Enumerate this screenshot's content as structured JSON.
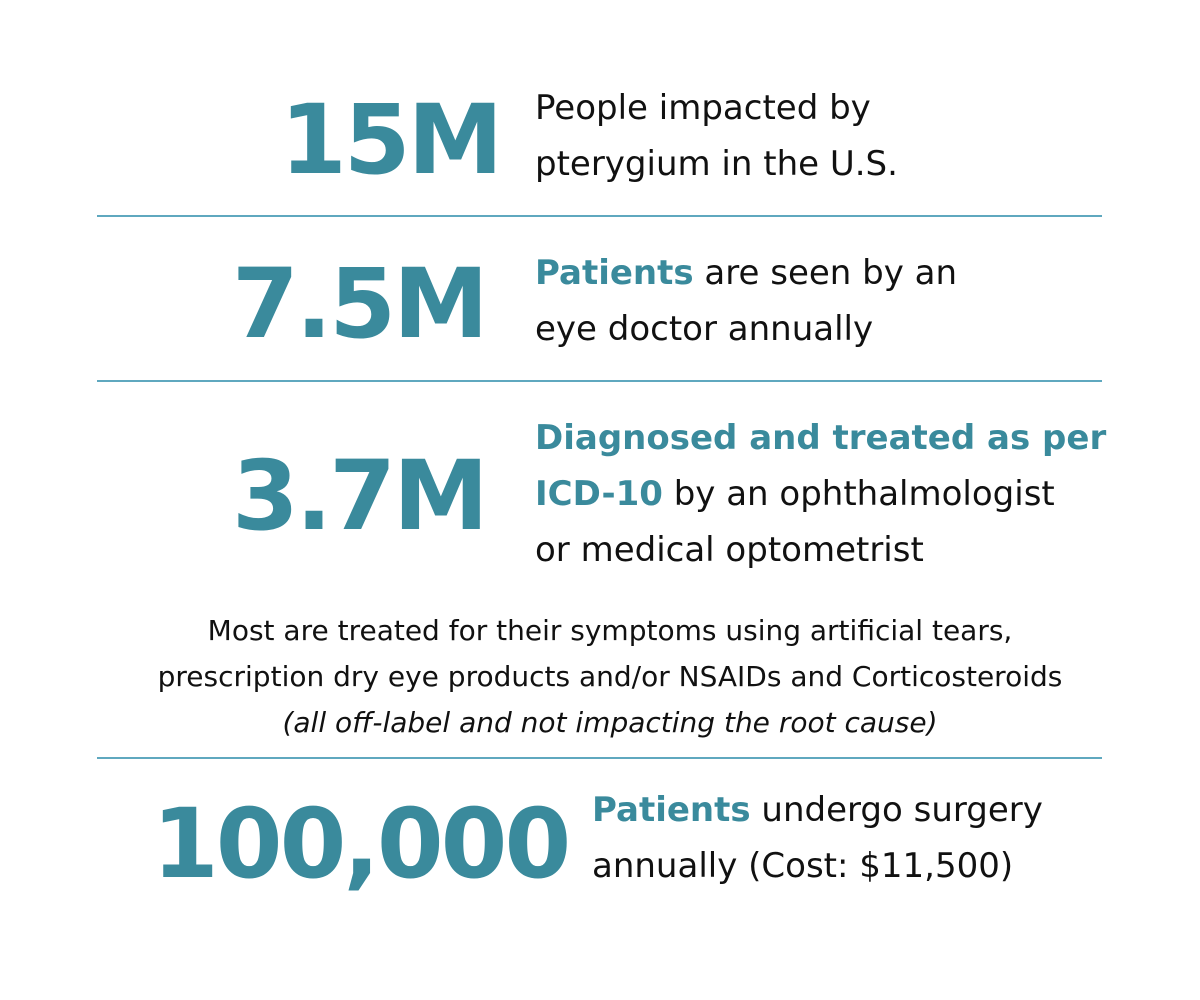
{
  "rows": [
    {
      "stat": "15M",
      "line1_plain": "People impacted by",
      "line2_plain": "pterygium in the U.S."
    },
    {
      "stat": "7.5M",
      "line1_highlight": "Patients",
      "line1_plain": " are seen by an",
      "line2_plain": "eye doctor annually"
    },
    {
      "stat": "3.7M",
      "line1_highlight": "Diagnosed and treated as per",
      "line2_highlight": "ICD-10",
      "line2_plain": " by an ophthalmologist",
      "line3_plain": "or medical optometrist"
    },
    {
      "stat": "100,000",
      "line1_highlight": "Patients",
      "line1_plain": " undergo surgery",
      "line2_plain": "annually (Cost: $11,500)"
    }
  ],
  "note": {
    "line1": "Most are treated for their symptoms using artificial tears,",
    "line2": "prescription dry eye products and/or NSAIDs and Corticosteroids",
    "line3": "(all off-label and not impacting the root cause)"
  },
  "colors": {
    "accent": "#3a8a9c",
    "divider": "#5fa8bf",
    "text": "#111111",
    "background": "#ffffff"
  }
}
